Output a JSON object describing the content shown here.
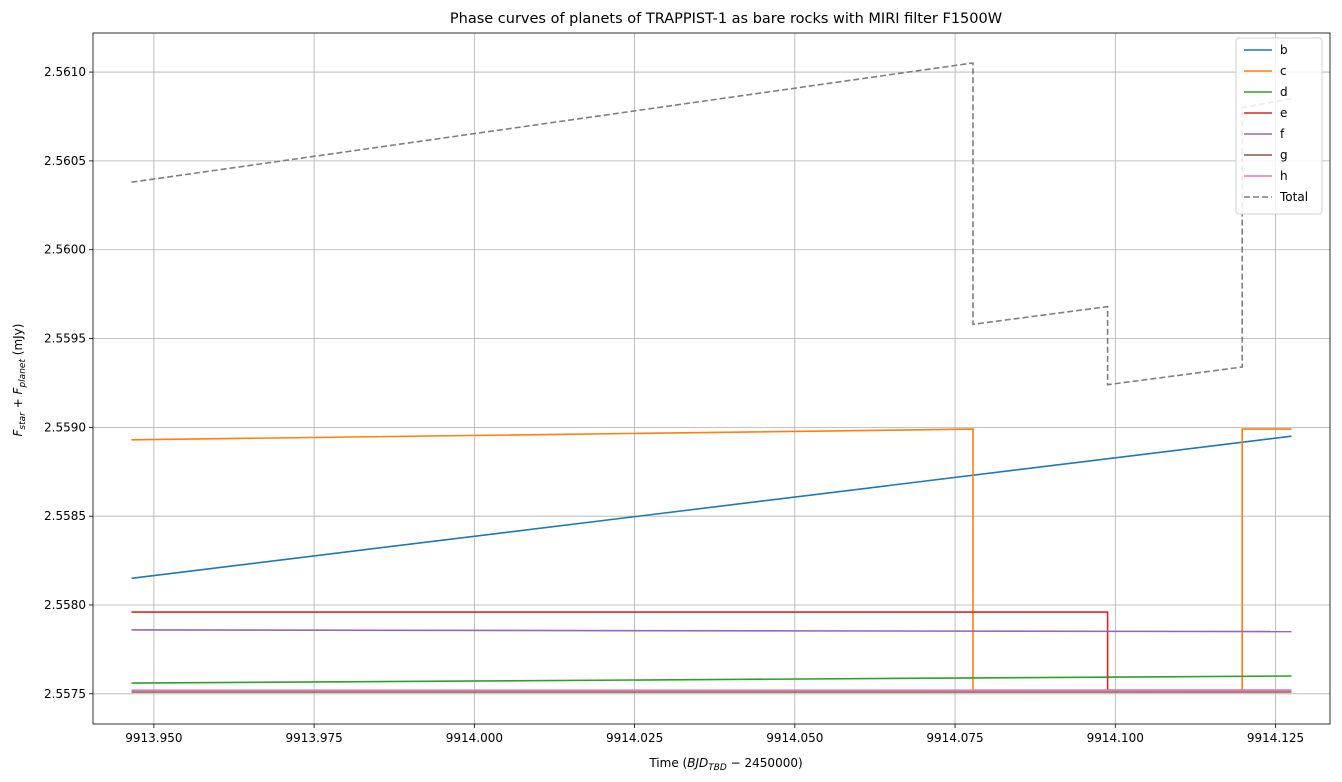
{
  "chart_data": {
    "type": "line",
    "title": "Phase curves of planets of TRAPPIST-1 as bare rocks with MIRI filter F1500W",
    "xlabel": "Time (BJD_TBD − 2450000)",
    "xlabel_parts": {
      "prefix": "Time (",
      "var": "BJD",
      "sub": "TBD",
      "suffix": " − 2450000)"
    },
    "ylabel": "F_star + F_planet (mJy)",
    "ylabel_parts": {
      "f1": "F",
      "s1": "star",
      "plus": " + ",
      "f2": "F",
      "s2": "planet",
      "unit": " (mJy)"
    },
    "xlim": [
      9913.9405,
      9914.1335
    ],
    "ylim": [
      2.55733,
      2.56122
    ],
    "xticks": [
      9913.95,
      9913.975,
      9914.0,
      9914.025,
      9914.05,
      9914.075,
      9914.1,
      9914.125
    ],
    "xtick_labels": [
      "9913.950",
      "9913.975",
      "9914.000",
      "9914.025",
      "9914.050",
      "9914.075",
      "9914.100",
      "9914.125"
    ],
    "yticks": [
      2.5575,
      2.558,
      2.5585,
      2.559,
      2.5595,
      2.56,
      2.5605,
      2.561
    ],
    "ytick_labels": [
      "2.5575",
      "2.5580",
      "2.5585",
      "2.5590",
      "2.5595",
      "2.5600",
      "2.5605",
      "2.5610"
    ],
    "grid": true,
    "legend_position": "top-right",
    "series": [
      {
        "name": "b",
        "color": "#1f77b4",
        "dashed": false,
        "points": [
          [
            9913.9465,
            2.55815
          ],
          [
            9914.1275,
            2.55895
          ]
        ]
      },
      {
        "name": "c",
        "color": "#ff7f0e",
        "dashed": false,
        "points": [
          [
            9913.9465,
            2.55893
          ],
          [
            9914.0778,
            2.55899
          ],
          [
            9914.0778,
            2.55752
          ],
          [
            9914.1198,
            2.55752
          ],
          [
            9914.1198,
            2.55899
          ],
          [
            9914.1275,
            2.55899
          ]
        ]
      },
      {
        "name": "d",
        "color": "#2ca02c",
        "dashed": false,
        "points": [
          [
            9913.9465,
            2.55756
          ],
          [
            9914.1275,
            2.5576
          ]
        ]
      },
      {
        "name": "e",
        "color": "#d62728",
        "dashed": false,
        "points": [
          [
            9913.9465,
            2.55796
          ],
          [
            9914.0988,
            2.55796
          ],
          [
            9914.0988,
            2.55752
          ],
          [
            9914.1275,
            2.55752
          ]
        ]
      },
      {
        "name": "f",
        "color": "#9467bd",
        "dashed": false,
        "points": [
          [
            9913.9465,
            2.55786
          ],
          [
            9914.1275,
            2.55785
          ]
        ]
      },
      {
        "name": "g",
        "color": "#8c564b",
        "dashed": false,
        "points": [
          [
            9913.9465,
            2.55751
          ],
          [
            9914.1275,
            2.55751
          ]
        ]
      },
      {
        "name": "h",
        "color": "#e377c2",
        "dashed": false,
        "points": [
          [
            9913.9465,
            2.55752
          ],
          [
            9914.1275,
            2.55752
          ]
        ]
      },
      {
        "name": "Total",
        "color": "#7f7f7f",
        "dashed": true,
        "points": [
          [
            9913.9465,
            2.56038
          ],
          [
            9914.0775,
            2.56105
          ],
          [
            9914.0778,
            2.56105
          ],
          [
            9914.0778,
            2.55958
          ],
          [
            9914.0988,
            2.55968
          ],
          [
            9914.0988,
            2.55924
          ],
          [
            9914.1198,
            2.55934
          ],
          [
            9914.1198,
            2.5608
          ],
          [
            9914.1275,
            2.56085
          ]
        ]
      }
    ]
  }
}
